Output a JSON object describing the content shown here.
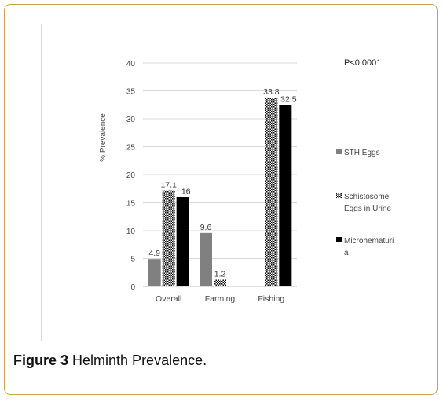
{
  "figure": {
    "label": "Figure 3",
    "text": "Helminth Prevalence."
  },
  "chart_data": {
    "type": "bar",
    "title": "",
    "annotation": "P<0.0001",
    "xlabel": "",
    "ylabel": "% Prevalence",
    "ylim": [
      0,
      40
    ],
    "yticks": [
      0,
      5,
      10,
      15,
      20,
      25,
      30,
      35,
      40
    ],
    "grid": true,
    "legend_position": "right",
    "categories": [
      "Overall",
      "Farming",
      "Fishing"
    ],
    "series": [
      {
        "name": "STH Eggs",
        "values": [
          4.9,
          9.6,
          null
        ],
        "labels": [
          "4.9",
          "9.6",
          ""
        ],
        "color": "#808080",
        "pattern": "solid"
      },
      {
        "name": "Schistosome Eggs in Urine",
        "values": [
          17.1,
          1.2,
          33.8
        ],
        "labels": [
          "17.1",
          "1.2",
          "33.8"
        ],
        "color": "#000000",
        "pattern": "checker"
      },
      {
        "name": "Microhematuria",
        "values": [
          16,
          null,
          32.5
        ],
        "labels": [
          "16",
          "",
          "32.5"
        ],
        "color": "#000000",
        "pattern": "solid"
      }
    ],
    "legend_lines": [
      [
        "STH Eggs"
      ],
      [
        "Schistosome",
        "Eggs in Urine"
      ],
      [
        "Microhematuri",
        "a"
      ]
    ]
  }
}
